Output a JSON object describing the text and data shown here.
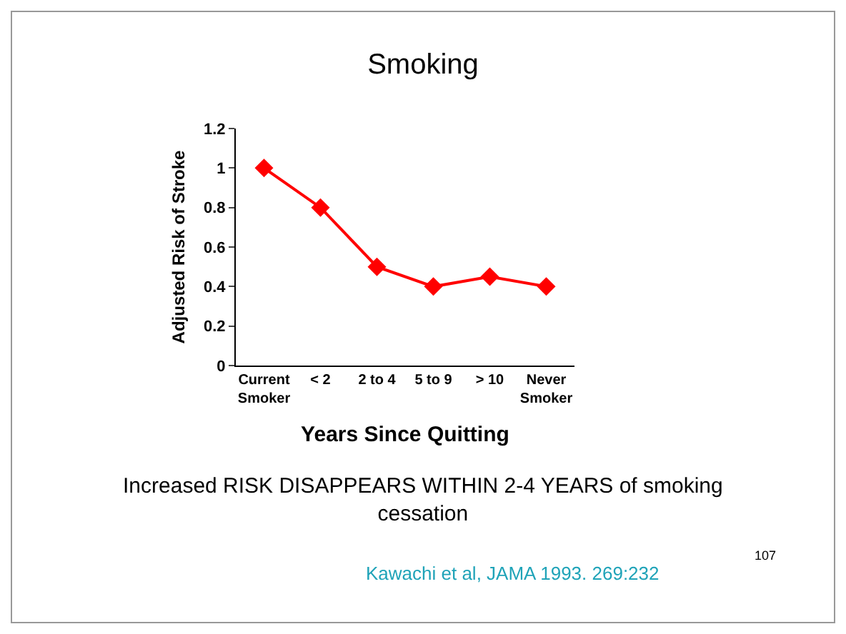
{
  "chart_data": {
    "type": "line",
    "title": "Smoking",
    "xlabel": "Years Since Quitting",
    "ylabel": "Adjusted Risk of Stroke",
    "categories": [
      "Current Smoker",
      "< 2",
      "2 to 4",
      "5 to 9",
      "> 10",
      "Never Smoker"
    ],
    "series": [
      {
        "color": "#ff0000",
        "values": [
          1,
          0.8,
          0.5,
          0.4,
          0.45,
          0.4
        ]
      }
    ],
    "ylim": [
      0,
      1.2
    ],
    "yticks": [
      0,
      0.2,
      0.4,
      0.6,
      0.8,
      1,
      1.2
    ],
    "grid": false,
    "marker": "diamond",
    "line_style": "solid",
    "annotations": [
      "Increased RISK DISAPPEARS WITHIN 2-4 YEARS of smoking cessation",
      "Kawachi et al, JAMA 1993. 269:232",
      "107"
    ]
  }
}
